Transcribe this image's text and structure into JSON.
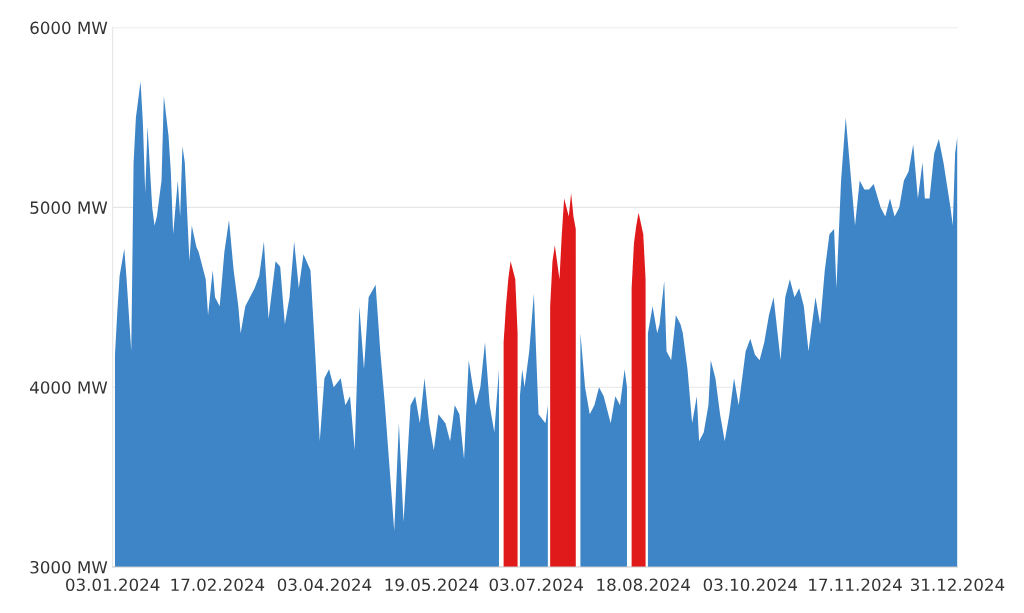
{
  "chart_data": {
    "type": "area",
    "series": [
      {
        "color": "#3d85c6",
        "x": [
          "2024-01-04",
          "2024-01-05",
          "2024-01-06",
          "2024-01-08",
          "2024-01-09",
          "2024-01-11",
          "2024-01-12",
          "2024-01-13",
          "2024-01-15",
          "2024-01-16",
          "2024-01-17",
          "2024-01-18",
          "2024-01-20",
          "2024-01-21",
          "2024-01-22",
          "2024-01-24",
          "2024-01-25",
          "2024-01-27",
          "2024-01-28",
          "2024-01-29",
          "2024-01-31",
          "2024-02-01",
          "2024-02-02",
          "2024-02-03",
          "2024-02-05",
          "2024-02-06",
          "2024-02-08",
          "2024-02-09",
          "2024-02-12",
          "2024-02-13",
          "2024-02-15",
          "2024-02-16",
          "2024-02-18",
          "2024-02-20",
          "2024-02-22",
          "2024-02-24",
          "2024-02-26",
          "2024-02-27",
          "2024-02-29",
          "2024-03-02",
          "2024-03-04",
          "2024-03-06",
          "2024-03-08",
          "2024-03-10",
          "2024-03-13",
          "2024-03-15",
          "2024-03-17",
          "2024-03-19",
          "2024-03-21",
          "2024-03-23",
          "2024-03-25",
          "2024-03-28",
          "2024-03-30",
          "2024-04-01",
          "2024-04-03",
          "2024-04-05",
          "2024-04-07",
          "2024-04-10",
          "2024-04-12",
          "2024-04-14",
          "2024-04-16",
          "2024-04-18",
          "2024-04-20",
          "2024-04-22",
          "2024-04-25",
          "2024-04-27",
          "2024-04-29",
          "2024-05-01",
          "2024-05-03",
          "2024-05-05",
          "2024-05-07",
          "2024-05-10",
          "2024-05-12",
          "2024-05-14",
          "2024-05-16",
          "2024-05-18",
          "2024-05-20",
          "2024-05-22",
          "2024-05-25",
          "2024-05-27",
          "2024-05-29",
          "2024-05-31",
          "2024-06-02",
          "2024-06-04",
          "2024-06-07",
          "2024-06-09",
          "2024-06-11",
          "2024-06-13",
          "2024-06-15",
          "2024-06-17",
          "2024-06-22",
          "2024-06-26",
          "2024-06-27",
          "2024-06-28",
          "2024-06-30",
          "2024-07-02",
          "2024-07-04",
          "2024-07-07",
          "2024-07-08",
          "2024-07-15",
          "2024-07-22",
          "2024-07-24",
          "2024-07-26",
          "2024-07-28",
          "2024-07-30",
          "2024-08-01",
          "2024-08-04",
          "2024-08-06",
          "2024-08-08",
          "2024-08-10",
          "2024-08-11",
          "2024-08-16",
          "2024-08-20",
          "2024-08-22",
          "2024-08-24",
          "2024-08-25",
          "2024-08-27",
          "2024-08-28",
          "2024-08-30",
          "2024-09-01",
          "2024-09-03",
          "2024-09-04",
          "2024-09-06",
          "2024-09-08",
          "2024-09-10",
          "2024-09-11",
          "2024-09-13",
          "2024-09-15",
          "2024-09-16",
          "2024-09-18",
          "2024-09-20",
          "2024-09-22",
          "2024-09-24",
          "2024-09-26",
          "2024-09-28",
          "2024-10-01",
          "2024-10-03",
          "2024-10-05",
          "2024-10-07",
          "2024-10-09",
          "2024-10-11",
          "2024-10-13",
          "2024-10-16",
          "2024-10-18",
          "2024-10-20",
          "2024-10-22",
          "2024-10-24",
          "2024-10-26",
          "2024-10-28",
          "2024-10-31",
          "2024-11-02",
          "2024-11-04",
          "2024-11-06",
          "2024-11-08",
          "2024-11-09",
          "2024-11-11",
          "2024-11-13",
          "2024-11-15",
          "2024-11-17",
          "2024-11-19",
          "2024-11-21",
          "2024-11-23",
          "2024-11-25",
          "2024-11-28",
          "2024-11-30",
          "2024-12-02",
          "2024-12-04",
          "2024-12-06",
          "2024-12-08",
          "2024-12-10",
          "2024-12-12",
          "2024-12-14",
          "2024-12-16",
          "2024-12-17",
          "2024-12-19",
          "2024-12-21",
          "2024-12-23",
          "2024-12-25",
          "2024-12-28",
          "2024-12-29",
          "2024-12-30",
          "2024-12-31"
        ],
        "values": [
          4180,
          4420,
          4620,
          4770,
          4600,
          4200,
          5250,
          5500,
          5700,
          5470,
          5080,
          5450,
          5000,
          4900,
          4950,
          5150,
          5620,
          5400,
          5200,
          4850,
          5150,
          4950,
          5340,
          5250,
          4700,
          4900,
          4780,
          4750,
          4600,
          4400,
          4650,
          4500,
          4450,
          4750,
          4930,
          4650,
          4450,
          4300,
          4450,
          4500,
          4550,
          4620,
          4810,
          4380,
          4700,
          4670,
          4350,
          4500,
          4810,
          4550,
          4740,
          4650,
          4200,
          3700,
          4050,
          4100,
          4000,
          4050,
          3900,
          3950,
          3650,
          4450,
          4100,
          4500,
          4570,
          4200,
          3900,
          3550,
          3200,
          3800,
          3250,
          3900,
          3950,
          3800,
          4050,
          3800,
          3650,
          3850,
          3800,
          3700,
          3900,
          3850,
          3600,
          4150,
          3900,
          4000,
          4250,
          3900,
          3750,
          4100,
          null,
          3950,
          4100,
          4000,
          4200,
          4520,
          3850,
          3800,
          3900,
          null,
          4300,
          4000,
          3850,
          3900,
          4000,
          3950,
          3800,
          3950,
          3900,
          4100,
          4000,
          null,
          4300,
          4450,
          4300,
          4350,
          4590,
          4200,
          4150,
          4400,
          4350,
          4300,
          4100,
          3800,
          3950,
          3700,
          3750,
          3900,
          4150,
          4050,
          3850,
          3700,
          3850,
          4050,
          3900,
          4200,
          4270,
          4180,
          4150,
          4250,
          4400,
          4500,
          4150,
          4500,
          4600,
          4500,
          4550,
          4450,
          4200,
          4500,
          4350,
          4650,
          4850,
          4880,
          4550,
          5150,
          5500,
          5200,
          4900,
          5150,
          5100,
          5100,
          5130,
          5000,
          4950,
          5050,
          4950,
          5000,
          5150,
          5200,
          5350,
          5050,
          5250,
          5050,
          5050,
          5300,
          5380,
          5250,
          5000,
          4900,
          5300,
          5400
        ]
      },
      {
        "color": "#e0191b",
        "x": [
          "2024-06-19",
          "2024-06-20",
          "2024-06-21",
          "2024-06-22",
          "2024-06-24",
          "2024-06-25",
          "2024-07-01",
          "2024-07-09",
          "2024-07-10",
          "2024-07-11",
          "2024-07-13",
          "2024-07-14",
          "2024-07-15",
          "2024-07-17",
          "2024-07-18",
          "2024-07-19",
          "2024-07-20",
          "2024-08-01",
          "2024-08-13",
          "2024-08-14",
          "2024-08-15",
          "2024-08-16",
          "2024-08-18",
          "2024-08-19"
        ],
        "values": [
          4250,
          4450,
          4600,
          4700,
          4600,
          4300,
          null,
          4450,
          4700,
          4790,
          4600,
          4850,
          5050,
          4950,
          5080,
          4950,
          4880,
          null,
          4550,
          4800,
          4900,
          4970,
          4850,
          4600
        ]
      }
    ],
    "xlim": [
      "2024-01-03",
      "2024-12-31"
    ],
    "xticks": [
      {
        "value": "2024-01-03",
        "label": "03.01.2024"
      },
      {
        "value": "2024-02-17",
        "label": "17.02.2024"
      },
      {
        "value": "2024-04-03",
        "label": "03.04.2024"
      },
      {
        "value": "2024-05-19",
        "label": "19.05.2024"
      },
      {
        "value": "2024-07-03",
        "label": "03.07.2024"
      },
      {
        "value": "2024-08-18",
        "label": "18.08.2024"
      },
      {
        "value": "2024-10-03",
        "label": "03.10.2024"
      },
      {
        "value": "2024-11-17",
        "label": "17.11.2024"
      },
      {
        "value": "2024-12-31",
        "label": "31.12.2024"
      }
    ],
    "ylim": [
      3000,
      6000
    ],
    "yticks": [
      {
        "value": 3000,
        "label": "3000 MW"
      },
      {
        "value": 4000,
        "label": "4000 MW"
      },
      {
        "value": 5000,
        "label": "5000 MW"
      },
      {
        "value": 6000,
        "label": "6000 MW"
      }
    ],
    "grid": "y",
    "legend": false
  }
}
